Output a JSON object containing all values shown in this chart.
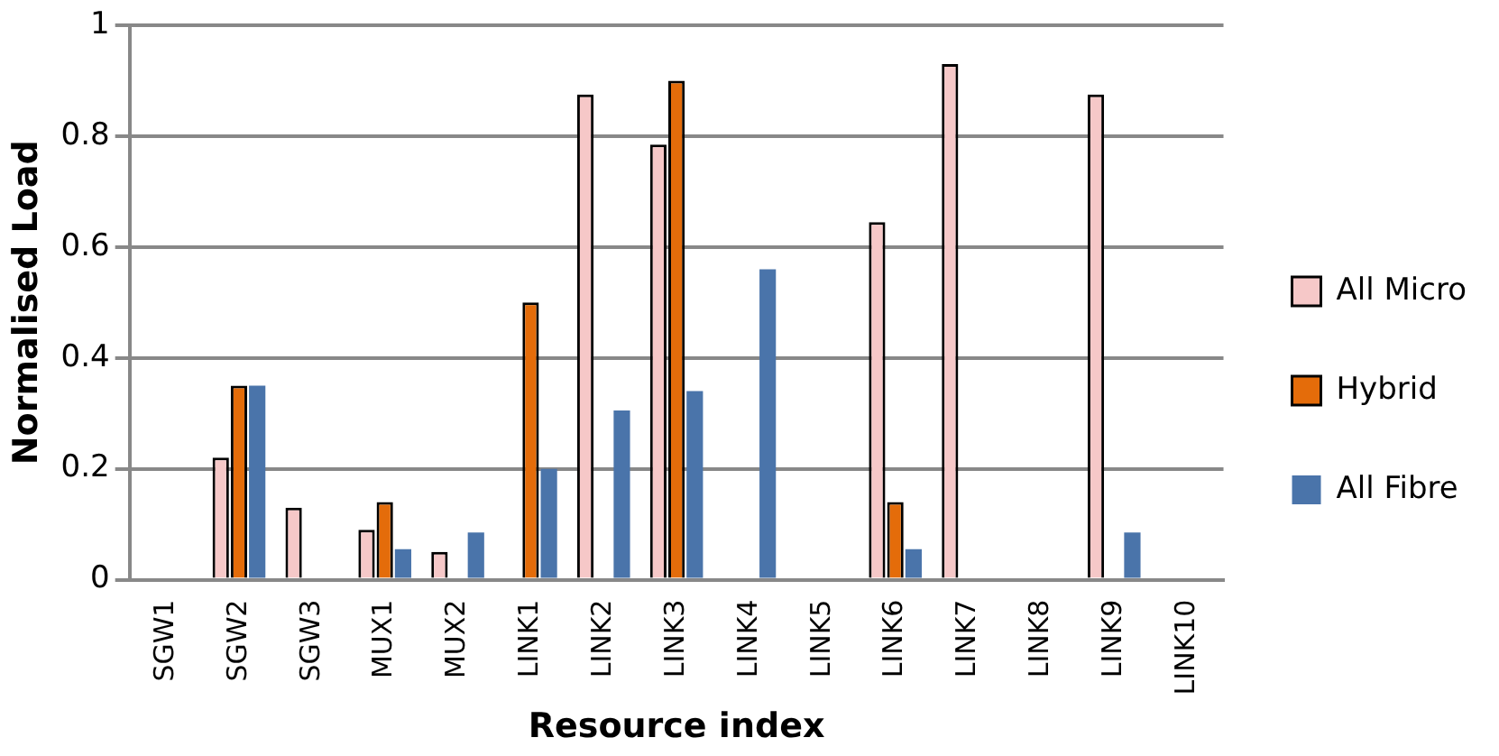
{
  "chart_data": {
    "type": "bar",
    "xlabel": "Resource index",
    "ylabel": "Normalised Load",
    "categories": [
      "SGW1",
      "SGW2",
      "SGW3",
      "MUX1",
      "MUX2",
      "LINK1",
      "LINK2",
      "LINK3",
      "LINK4",
      "LINK5",
      "LINK6",
      "LINK7",
      "LINK8",
      "LINK9",
      "LINK10"
    ],
    "series": [
      {
        "name": "All Micro",
        "color": "#f6c8c8",
        "values": [
          0,
          0.22,
          0.13,
          0.09,
          0.05,
          0,
          0.875,
          0.785,
          0,
          0,
          0.645,
          0.93,
          0,
          0.875,
          0
        ]
      },
      {
        "name": "Hybrid",
        "color": "#e46c0a",
        "values": [
          0,
          0.35,
          0,
          0.14,
          0,
          0.5,
          0,
          0.9,
          0,
          0,
          0.14,
          0,
          0,
          0,
          0
        ]
      },
      {
        "name": "All Fibre",
        "color": "#4a74aa",
        "values": [
          0,
          0.35,
          0,
          0.055,
          0.085,
          0.2,
          0.305,
          0.34,
          0.56,
          0,
          0.055,
          0,
          0,
          0.085,
          0
        ]
      }
    ],
    "ylim": [
      0,
      1
    ],
    "yticks": [
      0,
      0.2,
      0.4,
      0.6,
      0.8,
      1
    ],
    "grid": "y",
    "legend": "right"
  }
}
